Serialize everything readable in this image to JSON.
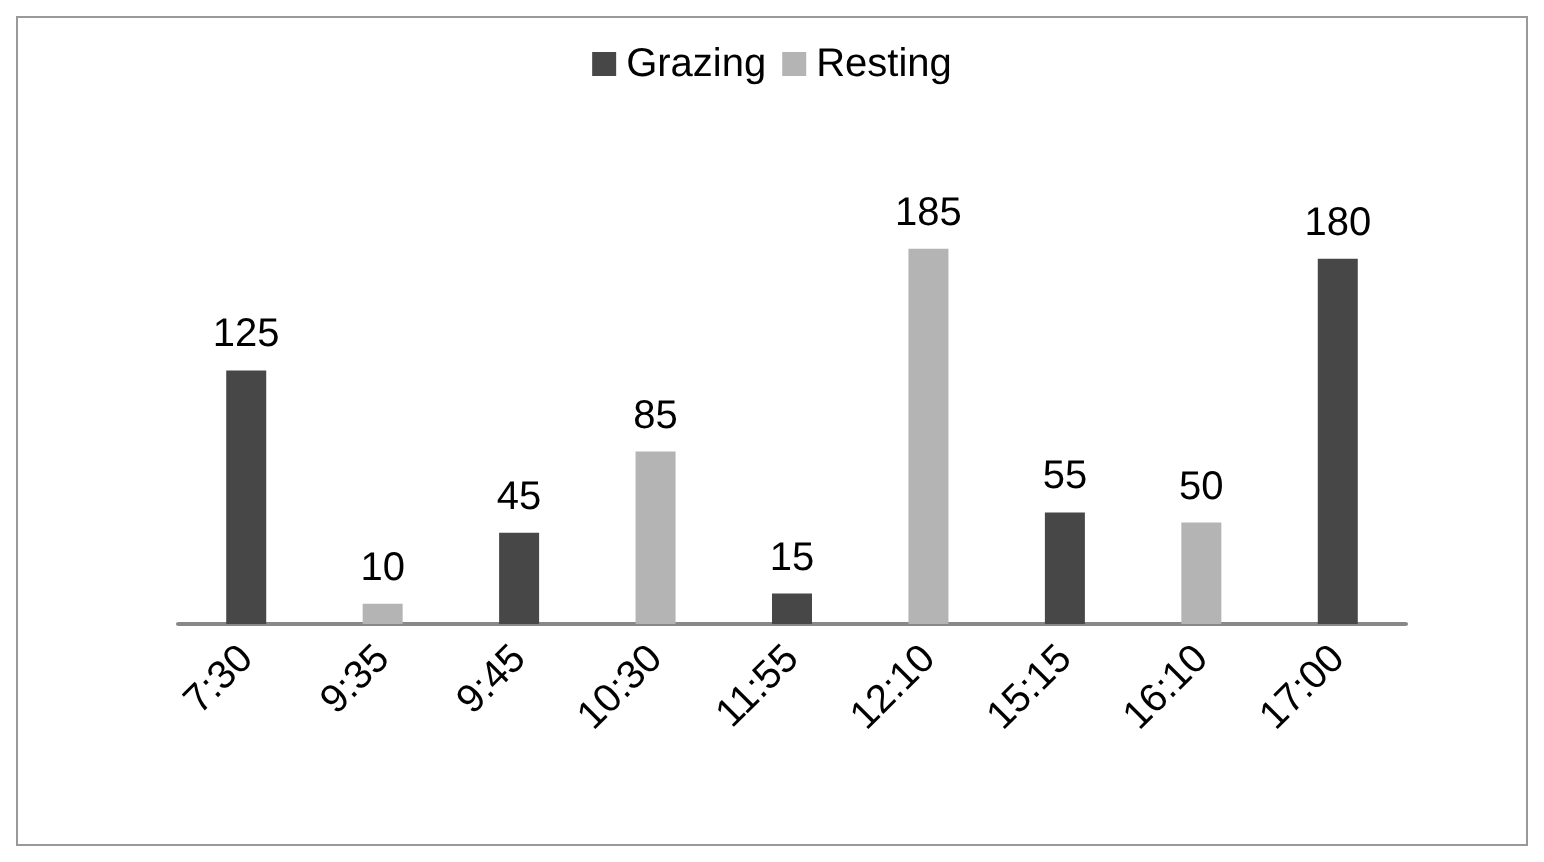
{
  "chart_data": {
    "type": "bar",
    "categories": [
      "7:30",
      "9:35",
      "9:45",
      "10:30",
      "11:55",
      "12:10",
      "15:15",
      "16:10",
      "17:00"
    ],
    "series": [
      {
        "name": "Grazing",
        "color": "#474747",
        "values": [
          125,
          null,
          45,
          null,
          15,
          null,
          55,
          null,
          180
        ]
      },
      {
        "name": "Resting",
        "color": "#b4b4b4",
        "values": [
          null,
          10,
          null,
          85,
          null,
          185,
          null,
          50,
          null
        ]
      }
    ],
    "data_labels": true,
    "legend": "top"
  }
}
